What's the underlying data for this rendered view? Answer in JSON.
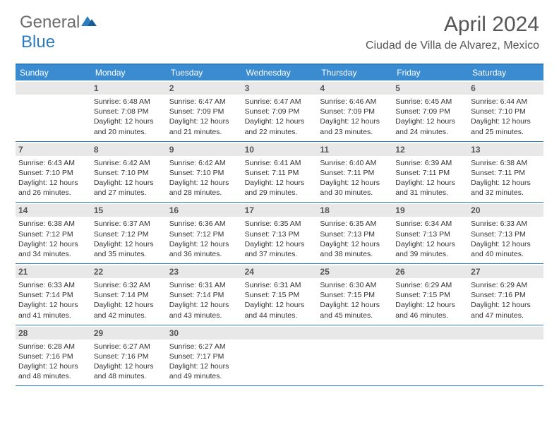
{
  "logo": {
    "general": "General",
    "blue": "Blue"
  },
  "title": "April 2024",
  "location": "Ciudad de Villa de Alvarez, Mexico",
  "header_bg": "#3b8bd0",
  "border_color": "#2e7cc0",
  "daynum_bg": "#e8e8e8",
  "text_color": "#333333",
  "dow": [
    "Sunday",
    "Monday",
    "Tuesday",
    "Wednesday",
    "Thursday",
    "Friday",
    "Saturday"
  ],
  "weeks": [
    [
      {
        "n": "",
        "sr": "",
        "ss": "",
        "d1": "",
        "d2": ""
      },
      {
        "n": "1",
        "sr": "Sunrise: 6:48 AM",
        "ss": "Sunset: 7:08 PM",
        "d1": "Daylight: 12 hours",
        "d2": "and 20 minutes."
      },
      {
        "n": "2",
        "sr": "Sunrise: 6:47 AM",
        "ss": "Sunset: 7:09 PM",
        "d1": "Daylight: 12 hours",
        "d2": "and 21 minutes."
      },
      {
        "n": "3",
        "sr": "Sunrise: 6:47 AM",
        "ss": "Sunset: 7:09 PM",
        "d1": "Daylight: 12 hours",
        "d2": "and 22 minutes."
      },
      {
        "n": "4",
        "sr": "Sunrise: 6:46 AM",
        "ss": "Sunset: 7:09 PM",
        "d1": "Daylight: 12 hours",
        "d2": "and 23 minutes."
      },
      {
        "n": "5",
        "sr": "Sunrise: 6:45 AM",
        "ss": "Sunset: 7:09 PM",
        "d1": "Daylight: 12 hours",
        "d2": "and 24 minutes."
      },
      {
        "n": "6",
        "sr": "Sunrise: 6:44 AM",
        "ss": "Sunset: 7:10 PM",
        "d1": "Daylight: 12 hours",
        "d2": "and 25 minutes."
      }
    ],
    [
      {
        "n": "7",
        "sr": "Sunrise: 6:43 AM",
        "ss": "Sunset: 7:10 PM",
        "d1": "Daylight: 12 hours",
        "d2": "and 26 minutes."
      },
      {
        "n": "8",
        "sr": "Sunrise: 6:42 AM",
        "ss": "Sunset: 7:10 PM",
        "d1": "Daylight: 12 hours",
        "d2": "and 27 minutes."
      },
      {
        "n": "9",
        "sr": "Sunrise: 6:42 AM",
        "ss": "Sunset: 7:10 PM",
        "d1": "Daylight: 12 hours",
        "d2": "and 28 minutes."
      },
      {
        "n": "10",
        "sr": "Sunrise: 6:41 AM",
        "ss": "Sunset: 7:11 PM",
        "d1": "Daylight: 12 hours",
        "d2": "and 29 minutes."
      },
      {
        "n": "11",
        "sr": "Sunrise: 6:40 AM",
        "ss": "Sunset: 7:11 PM",
        "d1": "Daylight: 12 hours",
        "d2": "and 30 minutes."
      },
      {
        "n": "12",
        "sr": "Sunrise: 6:39 AM",
        "ss": "Sunset: 7:11 PM",
        "d1": "Daylight: 12 hours",
        "d2": "and 31 minutes."
      },
      {
        "n": "13",
        "sr": "Sunrise: 6:38 AM",
        "ss": "Sunset: 7:11 PM",
        "d1": "Daylight: 12 hours",
        "d2": "and 32 minutes."
      }
    ],
    [
      {
        "n": "14",
        "sr": "Sunrise: 6:38 AM",
        "ss": "Sunset: 7:12 PM",
        "d1": "Daylight: 12 hours",
        "d2": "and 34 minutes."
      },
      {
        "n": "15",
        "sr": "Sunrise: 6:37 AM",
        "ss": "Sunset: 7:12 PM",
        "d1": "Daylight: 12 hours",
        "d2": "and 35 minutes."
      },
      {
        "n": "16",
        "sr": "Sunrise: 6:36 AM",
        "ss": "Sunset: 7:12 PM",
        "d1": "Daylight: 12 hours",
        "d2": "and 36 minutes."
      },
      {
        "n": "17",
        "sr": "Sunrise: 6:35 AM",
        "ss": "Sunset: 7:13 PM",
        "d1": "Daylight: 12 hours",
        "d2": "and 37 minutes."
      },
      {
        "n": "18",
        "sr": "Sunrise: 6:35 AM",
        "ss": "Sunset: 7:13 PM",
        "d1": "Daylight: 12 hours",
        "d2": "and 38 minutes."
      },
      {
        "n": "19",
        "sr": "Sunrise: 6:34 AM",
        "ss": "Sunset: 7:13 PM",
        "d1": "Daylight: 12 hours",
        "d2": "and 39 minutes."
      },
      {
        "n": "20",
        "sr": "Sunrise: 6:33 AM",
        "ss": "Sunset: 7:13 PM",
        "d1": "Daylight: 12 hours",
        "d2": "and 40 minutes."
      }
    ],
    [
      {
        "n": "21",
        "sr": "Sunrise: 6:33 AM",
        "ss": "Sunset: 7:14 PM",
        "d1": "Daylight: 12 hours",
        "d2": "and 41 minutes."
      },
      {
        "n": "22",
        "sr": "Sunrise: 6:32 AM",
        "ss": "Sunset: 7:14 PM",
        "d1": "Daylight: 12 hours",
        "d2": "and 42 minutes."
      },
      {
        "n": "23",
        "sr": "Sunrise: 6:31 AM",
        "ss": "Sunset: 7:14 PM",
        "d1": "Daylight: 12 hours",
        "d2": "and 43 minutes."
      },
      {
        "n": "24",
        "sr": "Sunrise: 6:31 AM",
        "ss": "Sunset: 7:15 PM",
        "d1": "Daylight: 12 hours",
        "d2": "and 44 minutes."
      },
      {
        "n": "25",
        "sr": "Sunrise: 6:30 AM",
        "ss": "Sunset: 7:15 PM",
        "d1": "Daylight: 12 hours",
        "d2": "and 45 minutes."
      },
      {
        "n": "26",
        "sr": "Sunrise: 6:29 AM",
        "ss": "Sunset: 7:15 PM",
        "d1": "Daylight: 12 hours",
        "d2": "and 46 minutes."
      },
      {
        "n": "27",
        "sr": "Sunrise: 6:29 AM",
        "ss": "Sunset: 7:16 PM",
        "d1": "Daylight: 12 hours",
        "d2": "and 47 minutes."
      }
    ],
    [
      {
        "n": "28",
        "sr": "Sunrise: 6:28 AM",
        "ss": "Sunset: 7:16 PM",
        "d1": "Daylight: 12 hours",
        "d2": "and 48 minutes."
      },
      {
        "n": "29",
        "sr": "Sunrise: 6:27 AM",
        "ss": "Sunset: 7:16 PM",
        "d1": "Daylight: 12 hours",
        "d2": "and 48 minutes."
      },
      {
        "n": "30",
        "sr": "Sunrise: 6:27 AM",
        "ss": "Sunset: 7:17 PM",
        "d1": "Daylight: 12 hours",
        "d2": "and 49 minutes."
      },
      {
        "n": "",
        "sr": "",
        "ss": "",
        "d1": "",
        "d2": ""
      },
      {
        "n": "",
        "sr": "",
        "ss": "",
        "d1": "",
        "d2": ""
      },
      {
        "n": "",
        "sr": "",
        "ss": "",
        "d1": "",
        "d2": ""
      },
      {
        "n": "",
        "sr": "",
        "ss": "",
        "d1": "",
        "d2": ""
      }
    ]
  ]
}
